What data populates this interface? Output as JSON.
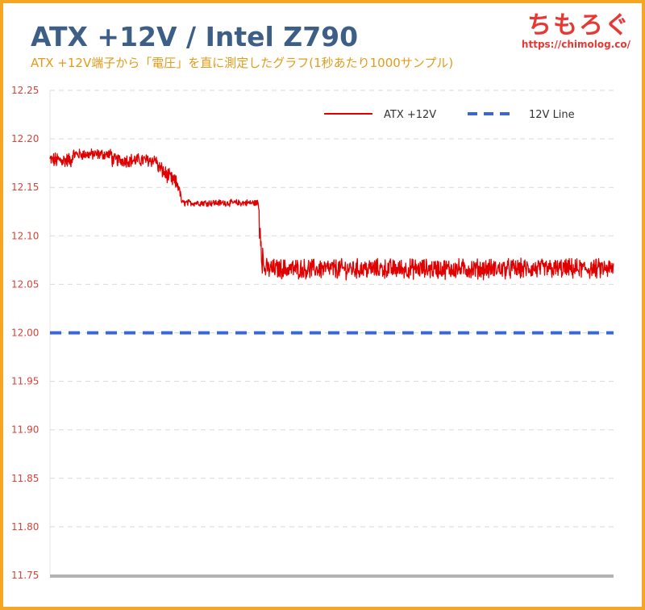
{
  "header": {
    "title": "ATX +12V / Intel Z790",
    "subtitle": "ATX +12V端子から「電圧」を直に測定したグラフ(1秒あたり1000サンプル)"
  },
  "logo": {
    "text": "ちもろぐ",
    "url": "https://chimolog.co/"
  },
  "colors": {
    "frame": "#f5a623",
    "title": "#3d5f87",
    "subtitle": "#e59a18",
    "logo": "#e53935",
    "atx_series": "#e00000",
    "reference_line": "#3a66d8",
    "tick_labels": "#d5443a",
    "grid": "#d9d9d9",
    "axis": "#b3b3b3"
  },
  "chart_data": {
    "type": "line",
    "title": "ATX +12V / Intel Z790",
    "xlabel": "",
    "ylabel": "",
    "ylim": [
      11.75,
      12.25
    ],
    "yticks": [
      "12.25",
      "12.20",
      "12.15",
      "12.10",
      "12.05",
      "12.00",
      "11.95",
      "11.90",
      "11.85",
      "11.80",
      "11.75"
    ],
    "grid": "horizontal dashed",
    "legend_position": "top-right",
    "series": [
      {
        "name": "ATX +12V",
        "style": "solid",
        "samples": 1400,
        "segments": [
          {
            "x_range": [
              0,
              0.04
            ],
            "mean": 12.178,
            "noise": 0.007
          },
          {
            "x_range": [
              0.04,
              0.11
            ],
            "mean": 12.184,
            "noise": 0.005
          },
          {
            "x_range": [
              0.11,
              0.19
            ],
            "mean": 12.178,
            "noise": 0.006
          },
          {
            "x_range": [
              0.19,
              0.228
            ],
            "mean": 12.162,
            "noise": 0.007
          },
          {
            "x_range": [
              0.228,
              0.235
            ],
            "mean": 12.14,
            "noise": 0.004
          },
          {
            "x_range": [
              0.235,
              0.37
            ],
            "mean": 12.134,
            "noise": 0.003
          },
          {
            "x_range": [
              0.37,
              0.38
            ],
            "mean": 12.09,
            "noise": 0.02
          },
          {
            "x_range": [
              0.38,
              1.0
            ],
            "mean": 12.066,
            "noise": 0.009
          }
        ]
      },
      {
        "name": "12V Line",
        "style": "dashed",
        "value": 12.0
      }
    ]
  }
}
